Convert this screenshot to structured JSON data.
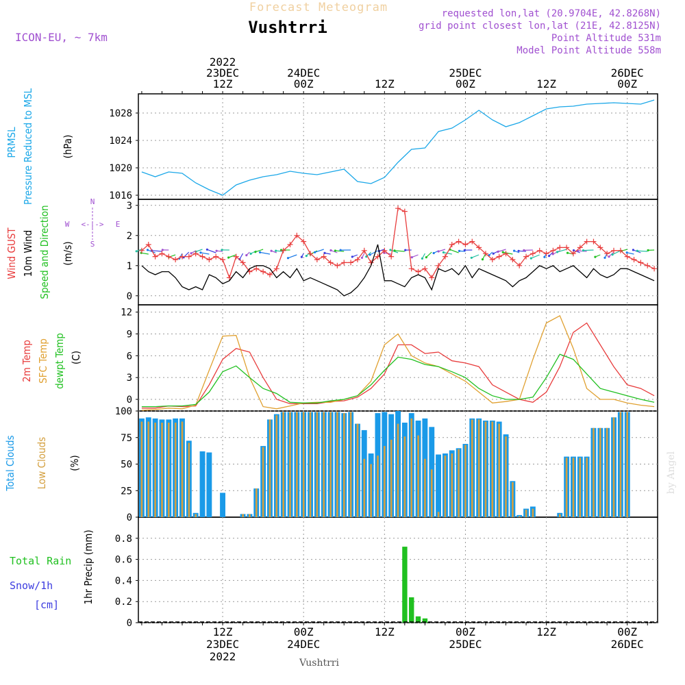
{
  "header": {
    "title": "Forecast Meteogram",
    "location": "Vushtrri",
    "model": "ICON-EU, ~ 7km",
    "requested": "requested lon,lat (20.9704E, 42.8268N)",
    "grid_point": "grid point closest lon,lat (21E, 42.8125N)",
    "point_alt": "Point Altitude 531m",
    "model_alt": "Model Point Altitude 558m",
    "footer_location": "Vushtrri",
    "watermark": "by Angel"
  },
  "time_axis": {
    "top_labels": [
      {
        "t": 12,
        "lines": [
          "2022",
          "23DEC",
          "12Z"
        ]
      },
      {
        "t": 24,
        "lines": [
          "24DEC",
          "00Z"
        ]
      },
      {
        "t": 36,
        "lines": [
          "12Z"
        ]
      },
      {
        "t": 48,
        "lines": [
          "25DEC",
          "00Z"
        ]
      },
      {
        "t": 60,
        "lines": [
          "12Z"
        ]
      },
      {
        "t": 72,
        "lines": [
          "26DEC",
          "00Z"
        ]
      }
    ],
    "bottom_labels": [
      {
        "t": 12,
        "lines": [
          "12Z",
          "23DEC",
          "2022"
        ]
      },
      {
        "t": 24,
        "lines": [
          "00Z",
          "24DEC"
        ]
      },
      {
        "t": 36,
        "lines": [
          "12Z"
        ]
      },
      {
        "t": 48,
        "lines": [
          "00Z",
          "25DEC"
        ]
      },
      {
        "t": 60,
        "lines": [
          "12Z"
        ]
      },
      {
        "t": 72,
        "lines": [
          "00Z",
          "26DEC"
        ]
      }
    ]
  },
  "panels": {
    "pressure": {
      "labels": [
        "PRMSL",
        "Pressure Reduced to MSL"
      ],
      "unit": "(hPa)",
      "ticks": [
        "1016",
        "1020",
        "1024",
        "1028"
      ]
    },
    "wind": {
      "labels": [
        "Wind GUST",
        "10m Wind",
        "Speed and Direction"
      ],
      "unit": "(m/s)",
      "ticks": [
        "0",
        "1",
        "2",
        "3"
      ],
      "compass": {
        "n": "N",
        "s": "S",
        "w": "W",
        "e": "E"
      }
    },
    "temp": {
      "labels": [
        "2m Temp",
        "SFC Temp",
        "dewpt Temp"
      ],
      "unit": "(C)",
      "ticks": [
        "0",
        "3",
        "6",
        "9",
        "12"
      ]
    },
    "clouds": {
      "labels": [
        "Total Clouds",
        "Low Clouds"
      ],
      "unit": "(%)",
      "ticks": [
        "0",
        "25",
        "50",
        "75",
        "100"
      ]
    },
    "precip": {
      "labels": [
        "Total  Rain",
        "Snow/1h",
        "[cm]"
      ],
      "unit": "1hr Precip (mm)",
      "ticks": [
        "0",
        "0.2",
        "0.4",
        "0.6",
        "0.8"
      ]
    }
  },
  "colors": {
    "pressure": "#1aa7e8",
    "gust": "#e83c3c",
    "wind": "#000000",
    "t2m": "#e83c3c",
    "sfc": "#e0a030",
    "dew": "#20c020",
    "total_clouds": "#1a9ae8",
    "low_clouds": "#d4a040",
    "rain": "#20c020",
    "snow": "#3c3ce0",
    "model": "#a050d0"
  },
  "chart_data": [
    {
      "type": "line",
      "id": "pressure",
      "x_unit": "hours from 23DEC 00Z",
      "ylabel": "(hPa)",
      "ylim": [
        1015.4,
        1030.8
      ],
      "series": [
        {
          "name": "PRMSL",
          "x": [
            0,
            2,
            4,
            6,
            8,
            10,
            12,
            14,
            16,
            18,
            20,
            22,
            24,
            26,
            28,
            30,
            32,
            34,
            36,
            38,
            40,
            42,
            44,
            46,
            48,
            50,
            52,
            54,
            56,
            58,
            60,
            62,
            64,
            66,
            68,
            70,
            72,
            74,
            76
          ],
          "y": [
            1019.4,
            1018.7,
            1019.4,
            1019.2,
            1017.8,
            1016.8,
            1016.0,
            1017.5,
            1018.2,
            1018.7,
            1019.0,
            1019.5,
            1019.2,
            1019.0,
            1019.4,
            1019.8,
            1018.0,
            1017.7,
            1018.6,
            1020.8,
            1022.7,
            1022.9,
            1025.3,
            1025.8,
            1027.0,
            1028.4,
            1027.0,
            1026.0,
            1026.6,
            1027.6,
            1028.6,
            1028.9,
            1029.0,
            1029.3,
            1029.4,
            1029.5,
            1029.4,
            1029.3,
            1029.9
          ]
        }
      ]
    },
    {
      "type": "line",
      "id": "wind",
      "ylabel": "(m/s)",
      "ylim": [
        -0.3,
        3.2
      ],
      "series": [
        {
          "name": "Wind GUST",
          "x": [
            0,
            1,
            2,
            3,
            4,
            5,
            6,
            7,
            8,
            9,
            10,
            11,
            12,
            13,
            14,
            15,
            16,
            17,
            18,
            19,
            20,
            21,
            22,
            23,
            24,
            25,
            26,
            27,
            28,
            29,
            30,
            31,
            32,
            33,
            34,
            35,
            36,
            37,
            38,
            39,
            40,
            41,
            42,
            43,
            44,
            45,
            46,
            47,
            48,
            49,
            50,
            51,
            52,
            53,
            54,
            55,
            56,
            57,
            58,
            59,
            60,
            61,
            62,
            63,
            64,
            65,
            66,
            67,
            68,
            69,
            70,
            71,
            72,
            73,
            74,
            75,
            76
          ],
          "y": [
            1.5,
            1.7,
            1.3,
            1.4,
            1.3,
            1.2,
            1.3,
            1.3,
            1.4,
            1.3,
            1.2,
            1.3,
            1.2,
            0.6,
            1.3,
            1.1,
            0.8,
            0.9,
            0.8,
            0.7,
            0.9,
            1.5,
            1.7,
            2.0,
            1.8,
            1.4,
            1.2,
            1.3,
            1.1,
            1.0,
            1.1,
            1.1,
            1.2,
            1.5,
            1.1,
            1.3,
            1.5,
            1.3,
            2.9,
            2.8,
            0.9,
            0.8,
            0.9,
            0.6,
            1.0,
            1.3,
            1.7,
            1.8,
            1.7,
            1.8,
            1.6,
            1.4,
            1.2,
            1.3,
            1.4,
            1.2,
            1.0,
            1.3,
            1.4,
            1.5,
            1.4,
            1.5,
            1.6,
            1.6,
            1.4,
            1.6,
            1.8,
            1.8,
            1.6,
            1.4,
            1.5,
            1.5,
            1.3,
            1.2,
            1.1,
            1.0,
            0.9
          ]
        },
        {
          "name": "10m Wind",
          "x": [
            0,
            1,
            2,
            3,
            4,
            5,
            6,
            7,
            8,
            9,
            10,
            11,
            12,
            13,
            14,
            15,
            16,
            17,
            18,
            19,
            20,
            21,
            22,
            23,
            24,
            25,
            26,
            27,
            28,
            29,
            30,
            31,
            32,
            33,
            34,
            35,
            36,
            37,
            38,
            39,
            40,
            41,
            42,
            43,
            44,
            45,
            46,
            47,
            48,
            49,
            50,
            51,
            52,
            53,
            54,
            55,
            56,
            57,
            58,
            59,
            60,
            61,
            62,
            63,
            64,
            65,
            66,
            67,
            68,
            69,
            70,
            71,
            72,
            73,
            74,
            75,
            76
          ],
          "y": [
            1.0,
            0.8,
            0.7,
            0.8,
            0.8,
            0.6,
            0.3,
            0.2,
            0.3,
            0.2,
            0.7,
            0.6,
            0.4,
            0.5,
            0.8,
            0.6,
            0.9,
            1.0,
            1.0,
            0.9,
            0.6,
            0.8,
            0.6,
            0.9,
            0.5,
            0.6,
            0.5,
            0.4,
            0.3,
            0.2,
            0.0,
            0.1,
            0.3,
            0.6,
            1.0,
            1.7,
            0.5,
            0.5,
            0.4,
            0.3,
            0.6,
            0.7,
            0.6,
            0.2,
            0.9,
            0.8,
            0.9,
            0.7,
            1.0,
            0.6,
            0.9,
            0.8,
            0.7,
            0.6,
            0.5,
            0.3,
            0.5,
            0.6,
            0.8,
            1.0,
            0.9,
            1.0,
            0.8,
            0.9,
            1.0,
            0.8,
            0.6,
            0.9,
            0.7,
            0.6,
            0.7,
            0.9,
            0.9,
            0.8,
            0.7,
            0.6,
            0.5
          ]
        }
      ]
    },
    {
      "type": "line",
      "id": "temp",
      "ylabel": "(C)",
      "ylim": [
        -1.6,
        13.0
      ],
      "series": [
        {
          "name": "2m Temp",
          "x": [
            0,
            2,
            4,
            6,
            8,
            10,
            12,
            14,
            16,
            18,
            20,
            22,
            24,
            26,
            28,
            30,
            32,
            34,
            36,
            38,
            40,
            42,
            44,
            46,
            48,
            50,
            52,
            54,
            56,
            58,
            60,
            62,
            64,
            66,
            68,
            70,
            72,
            74,
            76
          ],
          "y": [
            -1.2,
            -1.2,
            -0.9,
            -1.0,
            -0.9,
            2.0,
            5.5,
            7.0,
            6.5,
            3.0,
            0.0,
            -0.6,
            -0.6,
            -0.6,
            -0.3,
            -0.2,
            0.3,
            1.5,
            3.5,
            7.5,
            7.5,
            6.3,
            6.5,
            5.3,
            5.0,
            4.5,
            2.0,
            1.0,
            0.0,
            -0.4,
            1.0,
            4.5,
            9.2,
            10.5,
            7.5,
            4.5,
            2.0,
            1.5,
            0.5
          ]
        },
        {
          "name": "SFC Temp",
          "x": [
            0,
            2,
            4,
            6,
            8,
            10,
            12,
            14,
            16,
            18,
            20,
            22,
            24,
            26,
            28,
            30,
            32,
            34,
            36,
            38,
            40,
            42,
            44,
            46,
            48,
            50,
            52,
            54,
            56,
            58,
            60,
            62,
            64,
            66,
            68,
            70,
            72,
            74,
            76
          ],
          "y": [
            -1.5,
            -1.4,
            -1.2,
            -1.3,
            -0.8,
            4.0,
            8.7,
            8.8,
            3.0,
            -1.0,
            -1.3,
            -0.9,
            -0.5,
            -0.4,
            -0.4,
            0.0,
            0.5,
            2.5,
            7.5,
            9.0,
            6.0,
            5.0,
            4.5,
            3.5,
            2.5,
            1.0,
            -0.5,
            -0.3,
            0.0,
            5.5,
            10.5,
            11.5,
            7.0,
            1.5,
            0.0,
            0.0,
            -0.5,
            -0.8,
            -1.0
          ]
        },
        {
          "name": "dewpt Temp",
          "x": [
            0,
            2,
            4,
            6,
            8,
            10,
            12,
            14,
            16,
            18,
            20,
            22,
            24,
            26,
            28,
            30,
            32,
            34,
            36,
            38,
            40,
            42,
            44,
            46,
            48,
            50,
            52,
            54,
            56,
            58,
            60,
            62,
            64,
            66,
            68,
            70,
            72,
            74,
            76
          ],
          "y": [
            -1.0,
            -1.0,
            -0.9,
            -0.9,
            -0.7,
            1.0,
            3.8,
            4.6,
            3.0,
            1.5,
            0.8,
            -0.4,
            -0.5,
            -0.5,
            -0.2,
            0.0,
            0.5,
            2.0,
            4.0,
            5.8,
            5.5,
            4.8,
            4.5,
            3.8,
            3.0,
            1.5,
            0.5,
            0.0,
            0.0,
            0.3,
            3.0,
            6.2,
            5.5,
            3.5,
            1.5,
            1.0,
            0.5,
            0.0,
            -0.4
          ]
        }
      ]
    },
    {
      "type": "bar",
      "id": "clouds",
      "ylabel": "(%)",
      "ylim": [
        0,
        100
      ],
      "series": [
        {
          "name": "Total Clouds",
          "values": [
            93,
            94,
            93,
            92,
            92,
            93,
            93,
            72,
            4,
            62,
            61,
            0,
            23,
            0,
            0,
            3,
            3,
            27,
            67,
            92,
            97,
            99,
            99,
            99,
            99,
            99,
            99,
            99,
            99,
            99,
            98,
            99,
            88,
            82,
            60,
            98,
            99,
            97,
            100,
            89,
            98,
            91,
            93,
            85,
            59,
            60,
            63,
            65,
            69,
            93,
            93,
            91,
            91,
            90,
            78,
            34,
            2,
            8,
            10,
            0,
            0,
            0,
            4,
            57,
            57,
            57,
            57,
            84,
            84,
            84,
            94,
            99,
            99
          ]
        },
        {
          "name": "Low Clouds",
          "values": [
            90,
            90,
            89,
            89,
            89,
            89,
            90,
            70,
            3,
            0,
            0,
            0,
            0,
            0,
            0,
            3,
            3,
            27,
            66,
            92,
            96,
            99,
            99,
            99,
            99,
            99,
            99,
            99,
            99,
            99,
            98,
            99,
            88,
            55,
            50,
            58,
            67,
            73,
            88,
            76,
            93,
            77,
            55,
            45,
            5,
            58,
            60,
            64,
            68,
            92,
            92,
            90,
            90,
            88,
            76,
            33,
            1,
            7,
            8,
            0,
            0,
            0,
            3,
            56,
            56,
            56,
            56,
            84,
            84,
            84,
            94,
            99,
            99
          ]
        }
      ]
    },
    {
      "type": "bar",
      "id": "precip",
      "ylabel": "1hr Precip (mm)",
      "ylim": [
        0,
        1.0
      ],
      "series": [
        {
          "name": "Total Rain",
          "x": [
            39,
            40,
            41,
            42
          ],
          "values": [
            0.72,
            0.24,
            0.06,
            0.04
          ]
        }
      ]
    }
  ]
}
